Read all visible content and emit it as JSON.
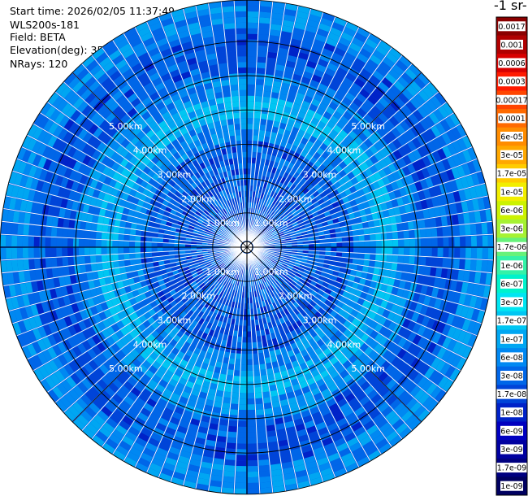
{
  "header": {
    "start_time": "Start time: 2026/02/05 11:37:49",
    "instrument": "WLS200s-181",
    "field": "Field: BETA",
    "elevation": "Elevation(deg): 35.00",
    "nrays": "NRays: 120"
  },
  "colorbar": {
    "title": "-1 sr-",
    "levels": [
      {
        "label": "0.0017",
        "color": "#8b0000"
      },
      {
        "label": "0.001",
        "color": "#b00000"
      },
      {
        "label": "0.0006",
        "color": "#d80000"
      },
      {
        "label": "0.0003",
        "color": "#ff1a00"
      },
      {
        "label": "0.00017",
        "color": "#ff4500"
      },
      {
        "label": "0.0001",
        "color": "#ff6a00"
      },
      {
        "label": "6e-05",
        "color": "#ff8c00"
      },
      {
        "label": "3e-05",
        "color": "#ffa800"
      },
      {
        "label": "1.7e-05",
        "color": "#ffcc00"
      },
      {
        "label": "1e-05",
        "color": "#f2ee00"
      },
      {
        "label": "6e-06",
        "color": "#ccf200"
      },
      {
        "label": "3e-06",
        "color": "#a6f233"
      },
      {
        "label": "1.7e-06",
        "color": "#66f27a"
      },
      {
        "label": "1e-06",
        "color": "#33f2a8"
      },
      {
        "label": "6e-07",
        "color": "#00f2cc"
      },
      {
        "label": "3e-07",
        "color": "#00e5f2"
      },
      {
        "label": "1.7e-07",
        "color": "#00c6f2"
      },
      {
        "label": "1e-07",
        "color": "#00a6f2"
      },
      {
        "label": "6e-08",
        "color": "#0088f2"
      },
      {
        "label": "3e-08",
        "color": "#0066e8"
      },
      {
        "label": "1.7e-08",
        "color": "#0044d8"
      },
      {
        "label": "1e-08",
        "color": "#0022c8"
      },
      {
        "label": "6e-09",
        "color": "#0000c0"
      },
      {
        "label": "3e-09",
        "color": "#0000a0"
      },
      {
        "label": "1.7e-09",
        "color": "#000080"
      },
      {
        "label": "1e-09",
        "color": "#000060"
      }
    ]
  },
  "chart_data": {
    "type": "heatmap",
    "projection": "polar PPI",
    "field": "BETA",
    "elevation_deg": 35.0,
    "n_rays": 120,
    "range_rings_km": [
      1,
      2,
      3,
      4,
      5
    ],
    "range_ring_labels": [
      "1.00km",
      "2.00km",
      "3.00km",
      "4.00km",
      "5.00km"
    ],
    "max_range_km": 7.2,
    "dominant_value_band": "1e-08 to 1e-07",
    "bright_annulus_km": [
      3.7,
      4.5
    ],
    "bright_annulus_value": "1e-07 to 3e-07",
    "grid": true
  }
}
